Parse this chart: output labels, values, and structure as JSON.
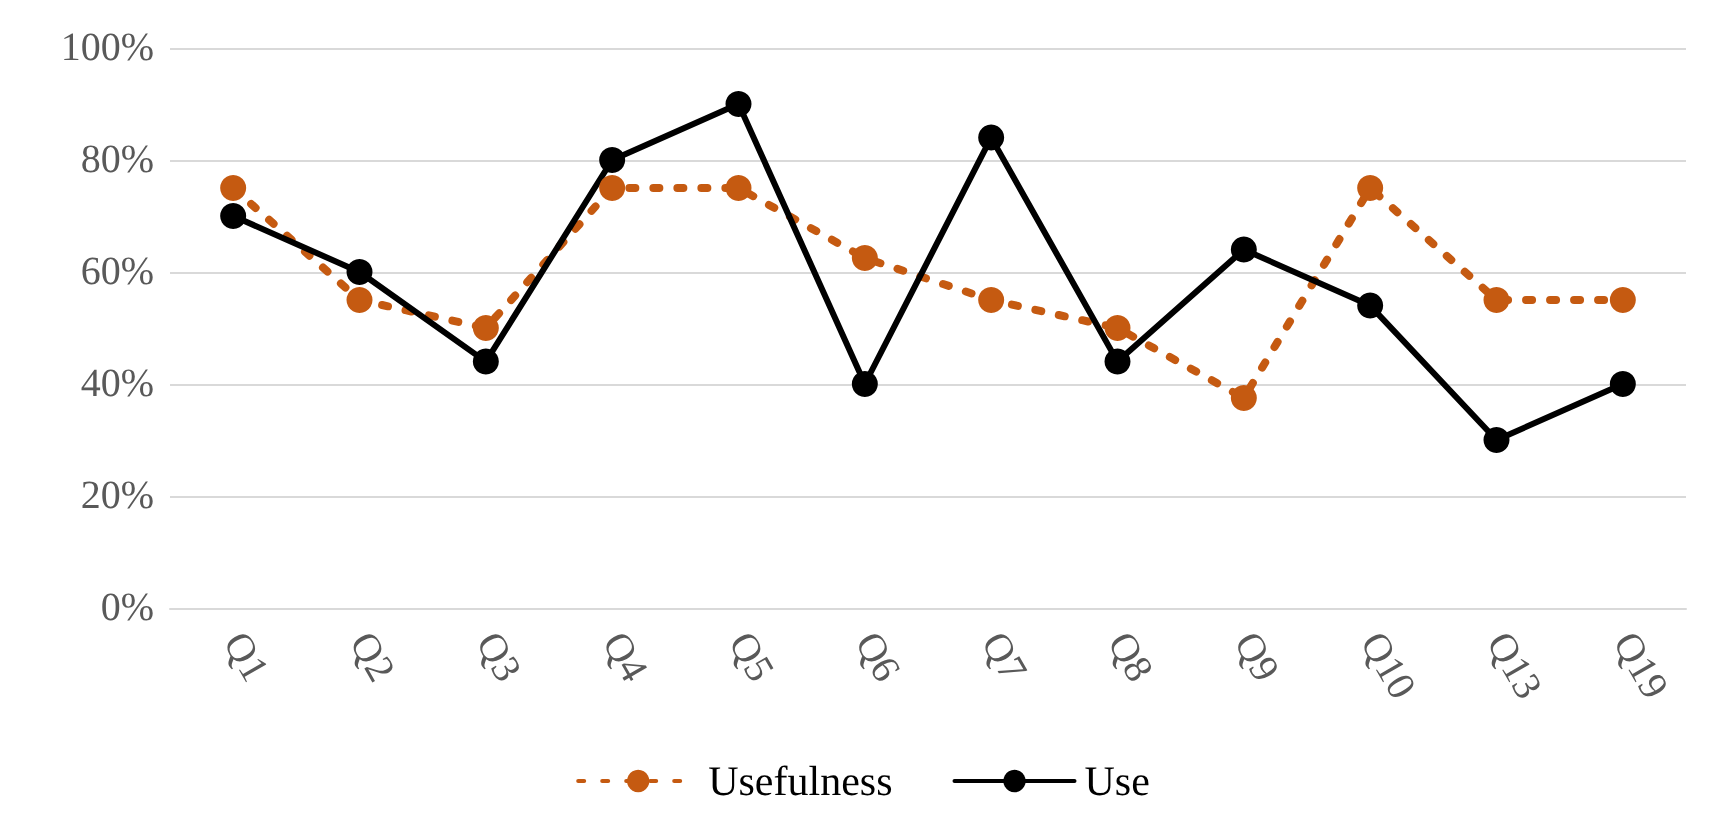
{
  "chart_data": {
    "type": "line",
    "categories": [
      "Q1",
      "Q2",
      "Q3",
      "Q4",
      "Q5",
      "Q6",
      "Q7",
      "Q8",
      "Q9",
      "Q10",
      "Q13",
      "Q19"
    ],
    "series": [
      {
        "name": "Usefulness",
        "color": "#c55a11",
        "line_style": "dotted",
        "values": [
          75,
          55,
          50,
          75,
          75,
          62.5,
          55,
          50,
          37.5,
          75,
          55,
          55
        ]
      },
      {
        "name": "Use",
        "color": "#000000",
        "line_style": "solid",
        "values": [
          70,
          60,
          44,
          80,
          90,
          40,
          84,
          44,
          64,
          54,
          30,
          40
        ]
      }
    ],
    "ylim": [
      0,
      100
    ],
    "yticks": [
      {
        "value": 0,
        "label": "0%"
      },
      {
        "value": 20,
        "label": "20%"
      },
      {
        "value": 40,
        "label": "40%"
      },
      {
        "value": 60,
        "label": "60%"
      },
      {
        "value": 80,
        "label": "80%"
      },
      {
        "value": 100,
        "label": "100%"
      }
    ],
    "grid": "y",
    "legend": "bottom",
    "marker": "circle"
  }
}
